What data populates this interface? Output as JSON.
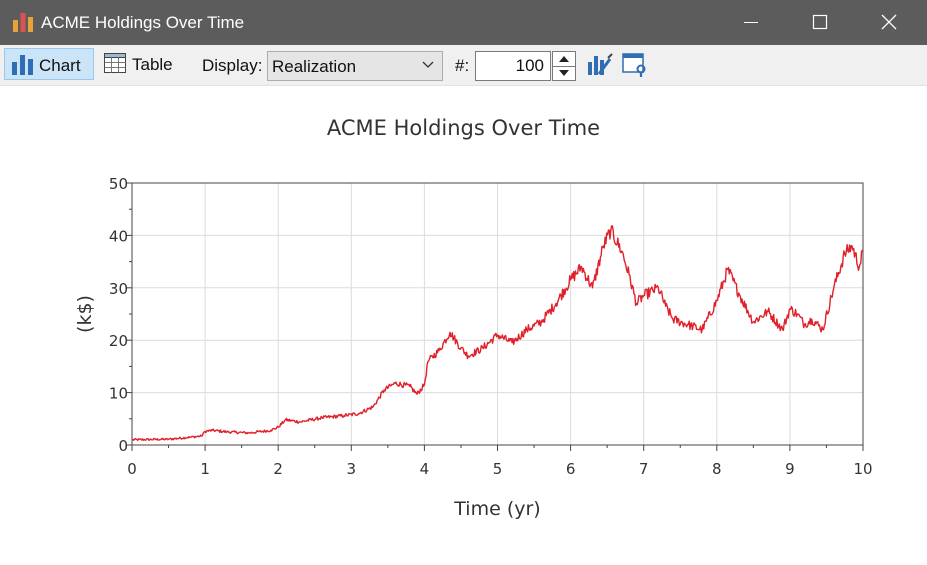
{
  "window": {
    "title": "ACME Holdings Over Time",
    "controls": [
      "minimize-icon",
      "maximize-icon",
      "close-icon"
    ]
  },
  "toolbar": {
    "chart_label": "Chart",
    "table_label": "Table",
    "display_label": "Display:",
    "display_value": "Realization",
    "number_label": "#:",
    "number_value": "100",
    "active_view": "Chart"
  },
  "colors": {
    "titlebar": "#5c5c5c",
    "series": "#e0202a",
    "accent": "#2f6db5",
    "active_button": "#cce4f7"
  },
  "chart_data": {
    "type": "line",
    "title": "ACME Holdings Over Time",
    "xlabel": "Time (yr)",
    "ylabel": "(k$)",
    "xlim": [
      0,
      10
    ],
    "ylim": [
      0,
      50
    ],
    "xticks": [
      0,
      1,
      2,
      3,
      4,
      5,
      6,
      7,
      8,
      9,
      10
    ],
    "yticks": [
      0,
      10,
      20,
      30,
      40,
      50
    ],
    "grid": true,
    "legend": "none",
    "series": [
      {
        "color": "#e0202a",
        "x": [
          0,
          0.5,
          0.8,
          0.95,
          1.0,
          1.1,
          1.3,
          1.6,
          1.9,
          2.0,
          2.1,
          2.3,
          2.6,
          2.9,
          3.1,
          3.3,
          3.45,
          3.6,
          3.8,
          3.9,
          4.0,
          4.05,
          4.2,
          4.35,
          4.5,
          4.6,
          4.8,
          5.0,
          5.2,
          5.4,
          5.6,
          5.8,
          6.0,
          6.15,
          6.3,
          6.45,
          6.55,
          6.7,
          6.8,
          6.9,
          7.0,
          7.2,
          7.3,
          7.4,
          7.6,
          7.8,
          8.0,
          8.15,
          8.3,
          8.5,
          8.7,
          8.9,
          9.0,
          9.1,
          9.2,
          9.3,
          9.45,
          9.6,
          9.75,
          9.85,
          9.95,
          10.0
        ],
        "y": [
          1.0,
          1.1,
          1.5,
          1.7,
          2.6,
          2.8,
          2.5,
          2.3,
          2.8,
          3.4,
          4.8,
          4.4,
          5.2,
          5.6,
          6.0,
          7.3,
          10.5,
          11.8,
          11.2,
          9.7,
          11.5,
          16.0,
          18.0,
          21.5,
          18.5,
          17.0,
          18.5,
          21.0,
          19.5,
          22.0,
          23.5,
          27.0,
          31.5,
          34.0,
          30.0,
          38.0,
          41.0,
          37.0,
          32.5,
          27.0,
          28.5,
          30.0,
          26.5,
          24.0,
          23.0,
          22.0,
          27.5,
          33.5,
          29.0,
          23.5,
          25.5,
          22.0,
          26.0,
          25.0,
          23.0,
          24.0,
          22.0,
          30.0,
          36.5,
          38.0,
          34.0,
          37.0
        ]
      }
    ]
  }
}
